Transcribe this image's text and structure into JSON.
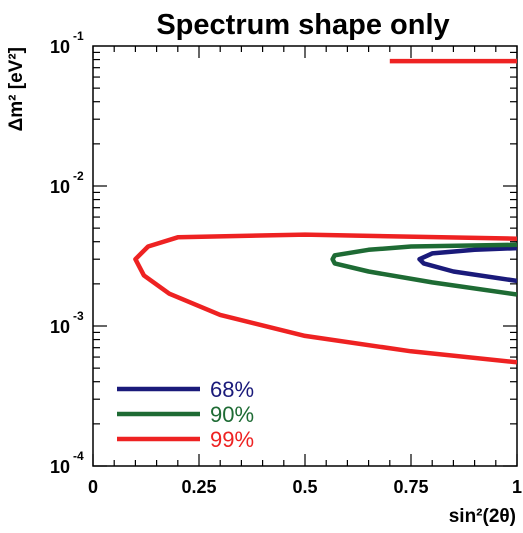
{
  "chart_data": {
    "type": "line",
    "title": "Spectrum shape only",
    "xlabel": "sin²(2θ)",
    "ylabel": "Δm² [eV²]",
    "xlim": [
      0,
      1
    ],
    "ylim": [
      0.0001,
      0.1
    ],
    "y_scale": "log",
    "x_ticks": [
      "0",
      "0.25",
      "0.5",
      "0.75",
      "1"
    ],
    "y_tick_bases": [
      "10",
      "10",
      "10",
      "10"
    ],
    "y_tick_exps": [
      "-4",
      "-3",
      "-2",
      "-1"
    ],
    "grid": false,
    "legend_position": "bottom-left",
    "series": [
      {
        "name": "68%",
        "color": "#1a1a7a",
        "points": [
          [
            1.0,
            0.0036
          ],
          [
            0.9,
            0.0035
          ],
          [
            0.8,
            0.0033
          ],
          [
            0.77,
            0.003
          ],
          [
            0.78,
            0.0028
          ],
          [
            0.85,
            0.00245
          ],
          [
            1.0,
            0.0021
          ]
        ]
      },
      {
        "name": "90%",
        "color": "#1e6b34",
        "points": [
          [
            1.0,
            0.0038
          ],
          [
            0.75,
            0.0037
          ],
          [
            0.65,
            0.0035
          ],
          [
            0.57,
            0.0032
          ],
          [
            0.565,
            0.003
          ],
          [
            0.57,
            0.0028
          ],
          [
            0.65,
            0.00245
          ],
          [
            0.8,
            0.00205
          ],
          [
            1.0,
            0.00168
          ]
        ]
      },
      {
        "name": "99%",
        "color": "#ee2222",
        "points": [
          [
            1.0,
            0.0042
          ],
          [
            0.5,
            0.0045
          ],
          [
            0.2,
            0.0043
          ],
          [
            0.13,
            0.0037
          ],
          [
            0.1,
            0.003
          ],
          [
            0.12,
            0.0023
          ],
          [
            0.18,
            0.0017
          ],
          [
            0.3,
            0.0012
          ],
          [
            0.5,
            0.00085
          ],
          [
            0.75,
            0.00066
          ],
          [
            1.0,
            0.00055
          ]
        ]
      },
      {
        "name": "99%",
        "color": "#ee2222",
        "points": [
          [
            0.7,
            0.078
          ],
          [
            1.0,
            0.078
          ]
        ]
      }
    ]
  }
}
